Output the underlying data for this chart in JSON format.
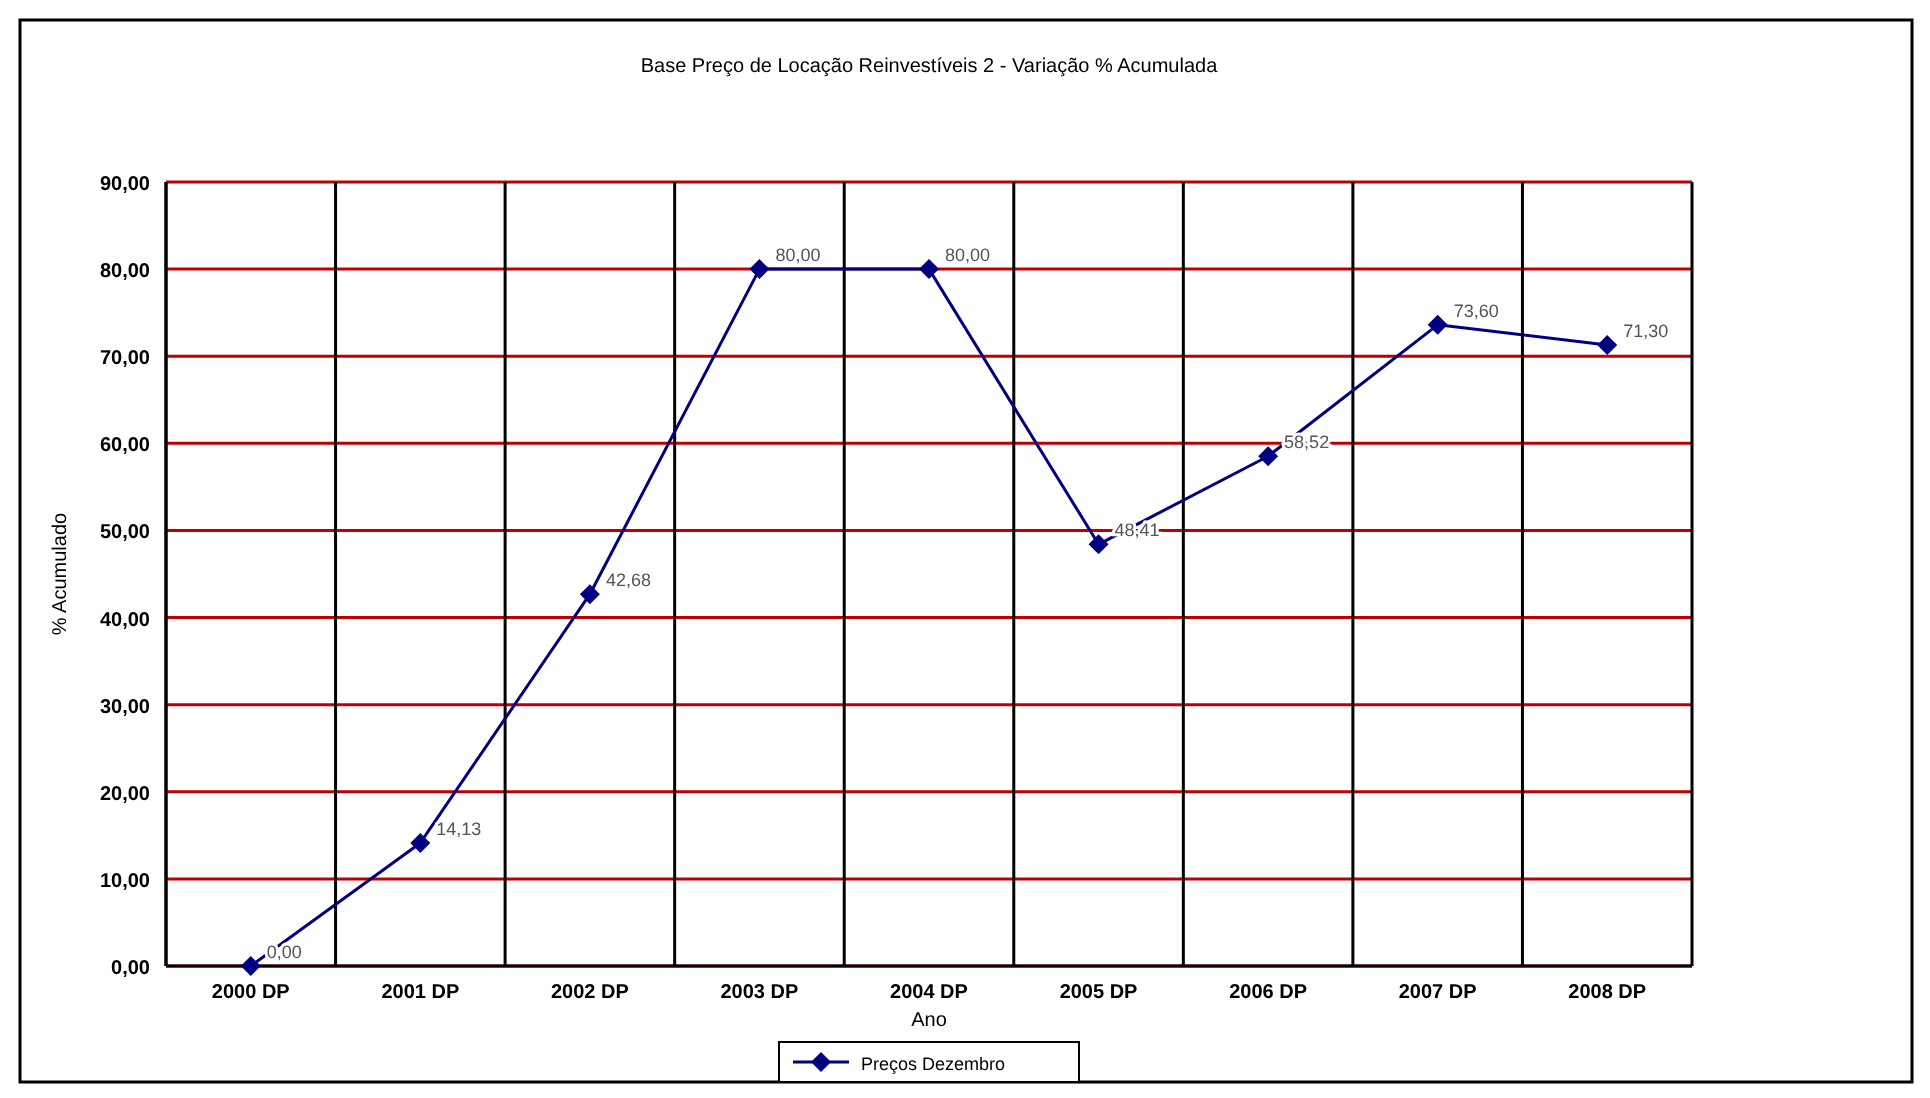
{
  "chart_data": {
    "type": "line",
    "title": "Base Preço de Locação Reinvestíveis 2 - Variação % Acumulada",
    "xlabel": "Ano",
    "ylabel": "% Acumulado",
    "categories": [
      "2000 DP",
      "2001 DP",
      "2002 DP",
      "2003 DP",
      "2004 DP",
      "2005 DP",
      "2006 DP",
      "2007 DP",
      "2008 DP"
    ],
    "series": [
      {
        "name": "Preços Dezembro",
        "color": "#000080",
        "values": [
          0,
          14.13,
          42.68,
          80,
          80,
          48.41,
          58.52,
          73.6,
          71.3
        ],
        "value_labels": [
          "0,00",
          "14,13",
          "42,68",
          "80,00",
          "80,00",
          "48,41",
          "58,52",
          "73,60",
          "71,30"
        ]
      }
    ],
    "ylim": [
      0,
      90
    ],
    "yticks": [
      {
        "value": 0,
        "label": "0,00"
      },
      {
        "value": 10,
        "label": "10,00"
      },
      {
        "value": 20,
        "label": "20,00"
      },
      {
        "value": 30,
        "label": "30,00"
      },
      {
        "value": 40,
        "label": "40,00"
      },
      {
        "value": 50,
        "label": "50,00"
      },
      {
        "value": 60,
        "label": "60,00"
      },
      {
        "value": 70,
        "label": "70,00"
      },
      {
        "value": 80,
        "label": "80,00"
      },
      {
        "value": 90,
        "label": "90,00"
      }
    ],
    "grid": true,
    "legend": "bottom",
    "marker": "diamond",
    "line_style": "solid"
  }
}
